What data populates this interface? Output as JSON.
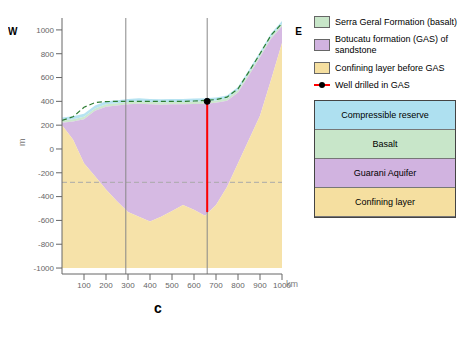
{
  "chart_data": {
    "type": "area",
    "panel_label": "c",
    "x_label": "km",
    "y_label": "m",
    "side_labels": [
      "W",
      "E"
    ],
    "x": [
      0,
      50,
      100,
      150,
      200,
      250,
      300,
      350,
      400,
      450,
      500,
      550,
      600,
      650,
      700,
      750,
      800,
      850,
      900,
      950,
      1000
    ],
    "xlim": [
      0,
      1000
    ],
    "xticks": [
      100,
      200,
      300,
      400,
      500,
      600,
      700,
      800,
      900,
      1000
    ],
    "ylim": [
      -1050,
      1100
    ],
    "yticks": [
      -1000,
      -800,
      -600,
      -400,
      -200,
      0,
      200,
      400,
      600,
      800,
      1000
    ],
    "series": [
      {
        "name": "Serra Geral Formation (basalt)",
        "color": "#c8e6c9",
        "values": [
          240,
          250,
          270,
          340,
          375,
          385,
          395,
          400,
          395,
          392,
          395,
          395,
          398,
          400,
          408,
          425,
          495,
          640,
          790,
          945,
          1050
        ],
        "bottom": [
          220,
          230,
          250,
          320,
          355,
          365,
          375,
          380,
          375,
          372,
          375,
          375,
          378,
          380,
          388,
          405,
          475,
          620,
          770,
          925,
          1030
        ]
      },
      {
        "name": "Botucatu formation (GAS) of sandstone",
        "color": "#d1b3e0",
        "values": [
          220,
          230,
          250,
          320,
          355,
          365,
          375,
          380,
          375,
          372,
          375,
          375,
          378,
          380,
          388,
          405,
          475,
          620,
          770,
          925,
          1030
        ],
        "bottom": [
          200,
          80,
          -120,
          -230,
          -340,
          -440,
          -530,
          -570,
          -610,
          -570,
          -520,
          -470,
          -510,
          -560,
          -470,
          -320,
          -120,
          80,
          280,
          580,
          890
        ]
      },
      {
        "name": "Confining layer before GAS",
        "color": "#f5dfa0",
        "values": [
          200,
          80,
          -120,
          -230,
          -340,
          -440,
          -530,
          -570,
          -610,
          -570,
          -520,
          -470,
          -510,
          -560,
          -470,
          -320,
          -120,
          80,
          280,
          580,
          890
        ],
        "bottom": [
          -1000,
          -1000,
          -1000,
          -1000,
          -1000,
          -1000,
          -1000,
          -1000,
          -1000,
          -1000,
          -1000,
          -1000,
          -1000,
          -1000,
          -1000,
          -1000,
          -1000,
          -1000,
          -1000,
          -1000,
          -1000
        ]
      },
      {
        "color": "#aee0f0",
        "values": [
          265,
          275,
          295,
          365,
          400,
          410,
          420,
          425,
          420,
          417,
          420,
          420,
          423,
          425,
          433,
          450,
          520,
          665,
          815,
          970,
          1075
        ],
        "bottom": [
          240,
          250,
          270,
          340,
          375,
          385,
          395,
          400,
          395,
          392,
          395,
          395,
          398,
          400,
          408,
          425,
          495,
          640,
          790,
          945,
          1050
        ]
      },
      {
        "type": "line",
        "color": "#2e7d32",
        "line_style": "dashed",
        "values": [
          240,
          270,
          350,
          390,
          398,
          400,
          400,
          400,
          400,
          400,
          400,
          400,
          403,
          408,
          415,
          435,
          505,
          650,
          800,
          955,
          1055
        ]
      }
    ],
    "hlines": [
      {
        "y": -280,
        "color": "#aaaaaa",
        "line_style": "dashed"
      }
    ],
    "vlines": [
      {
        "x": 290,
        "color": "#888888"
      },
      {
        "x": 660,
        "color": "#888888"
      }
    ],
    "well": {
      "name": "Well drilled in GAS",
      "x": 660,
      "top": 380,
      "bottom": -530,
      "dot": 400,
      "color": "red"
    },
    "inset_layers": [
      {
        "label": "Compressible reserve",
        "color": "#aee0f0"
      },
      {
        "label": "Basalt",
        "color": "#c8e6c9"
      },
      {
        "label": "Guarani Aquifer",
        "color": "#d1b3e0"
      },
      {
        "label": "Confining layer",
        "color": "#f5dfa0"
      }
    ]
  }
}
